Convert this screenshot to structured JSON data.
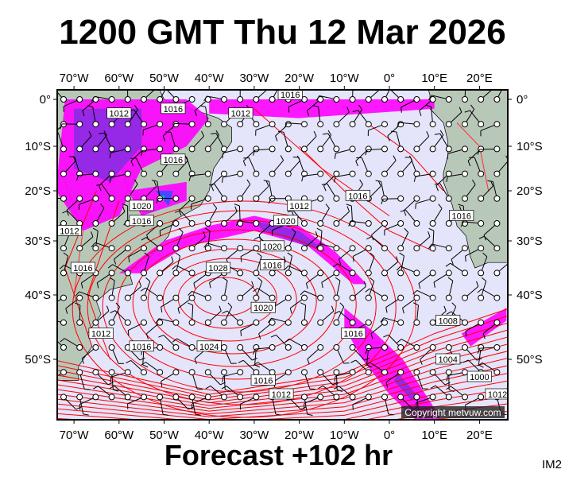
{
  "header": {
    "title": "1200 GMT Thu 12 Mar 2026"
  },
  "footer": {
    "forecast": "Forecast +102 hr",
    "image_code": "IM2"
  },
  "map": {
    "type": "surface pressure and precipitation forecast",
    "region": "South Atlantic",
    "lon_labels_top": [
      "70°W",
      "60°W",
      "50°W",
      "40°W",
      "30°W",
      "20°W",
      "10°W",
      "0°",
      "10°E",
      "20°E"
    ],
    "lon_labels_bottom": [
      "70°W",
      "60°W",
      "50°W",
      "40°W",
      "30°W",
      "20°W",
      "10°W",
      "0°",
      "10°E",
      "20°E"
    ],
    "lat_labels_left": [
      "0°",
      "10°S",
      "20°S",
      "30°S",
      "40°S",
      "50°S"
    ],
    "lat_labels_right": [
      "0°",
      "10°S",
      "20°S",
      "30°S",
      "40°S",
      "50°S"
    ],
    "isobar_labels": [
      "1016",
      "1016",
      "1012",
      "1012",
      "1016",
      "1016",
      "1020",
      "1020",
      "1016",
      "1012",
      "1020",
      "1016",
      "1016",
      "1012",
      "1028",
      "1024",
      "1020",
      "1016",
      "1012",
      "1016",
      "1016",
      "1012",
      "1008",
      "1004",
      "1000",
      "1012",
      "1016"
    ],
    "copyright": "Copyright metvuw.com",
    "colors": {
      "ocean": "#e4e4fa",
      "land": "#b8c8b8",
      "isobar": "#ff0000",
      "precip_light": "#ff00ff",
      "precip_medium": "#8a2be2",
      "precip_heavy": "#3050ff",
      "precip_extreme": "#00e0e0"
    }
  }
}
